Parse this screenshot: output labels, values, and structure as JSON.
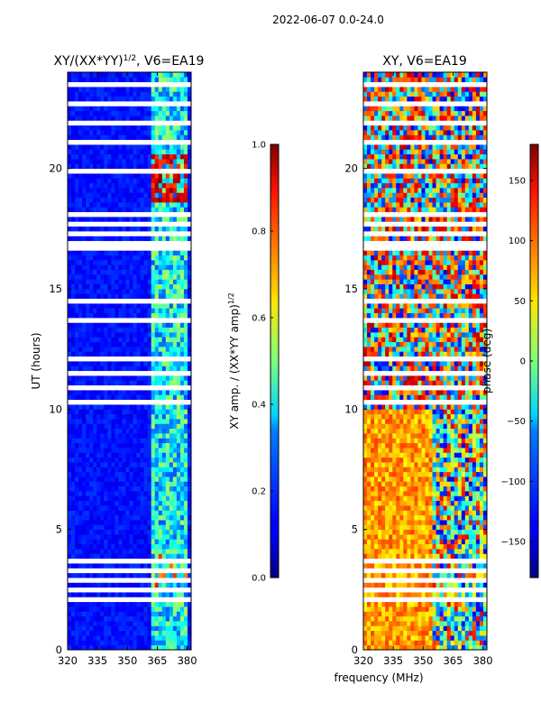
{
  "suptitle": "2022-06-07 0.0-24.0",
  "xlabel": "frequency (MHz)",
  "chart_data": [
    {
      "type": "heatmap",
      "title": "XY/(XX*YY)",
      "title_sup": "1/2",
      "title_suffix": ", V6=EA19",
      "xlabel": "frequency (MHz)",
      "ylabel": "UT (hours)",
      "xlim": [
        320,
        382
      ],
      "ylim": [
        0,
        24
      ],
      "xticks": [
        "320",
        "335",
        "350",
        "365",
        "380"
      ],
      "yticks": [
        "0",
        "5",
        "10",
        "15",
        "20"
      ],
      "colorbar": {
        "label": "XY amp. / (XX*YY amp)",
        "label_sup": "1/2",
        "range": [
          0.0,
          1.0
        ],
        "ticks": [
          "0.0",
          "0.2",
          "0.4",
          "0.6",
          "0.8",
          "1.0"
        ],
        "colormap": "jet"
      }
    },
    {
      "type": "heatmap",
      "title": "XY, V6=EA19",
      "xlabel": "frequency (MHz)",
      "ylabel": "",
      "xlim": [
        320,
        382
      ],
      "ylim": [
        0,
        24
      ],
      "xticks": [
        "320",
        "335",
        "350",
        "365",
        "380"
      ],
      "yticks": [
        "0",
        "5",
        "10",
        "15",
        "20"
      ],
      "colorbar": {
        "label": "phase (deg)",
        "range": [
          -180,
          180
        ],
        "ticks": [
          "−150",
          "−100",
          "−50",
          "0",
          "50",
          "100",
          "150"
        ],
        "colormap": "jet"
      }
    }
  ]
}
